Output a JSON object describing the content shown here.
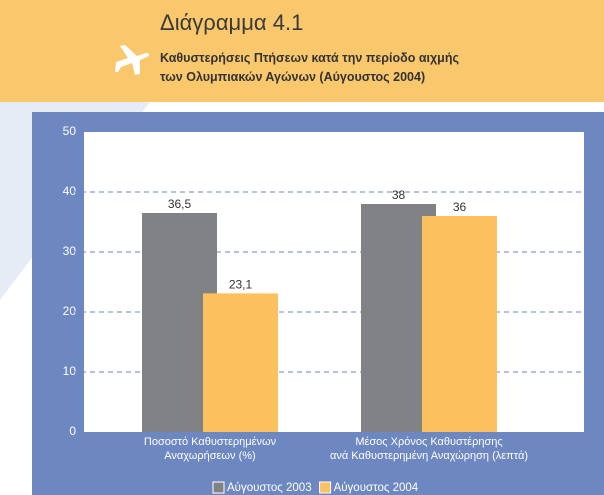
{
  "chart_data": {
    "type": "bar",
    "title": "Διάγραμμα 4.1",
    "subtitle": "Καθυστερήσεις Πτήσεων κατά την περίοδο αιχμής\nτων Ολυμπιακών Αγώνων (Αύγουστος 2004)",
    "categories": [
      "Ποσοστό Καθυστερημένων\nΑναχωρήσεων (%)",
      "Μέσος Χρόνος Καθυστέρησης\nανά Καθυστερημένη Αναχώρηση (λεπτά)"
    ],
    "series": [
      {
        "name": "Αύγουστος 2003",
        "color": "#808285",
        "values": [
          36.5,
          38
        ],
        "value_labels": [
          "36,5",
          "38"
        ]
      },
      {
        "name": "Αύγουστος 2004",
        "color": "#fbc15e",
        "values": [
          23.1,
          36
        ],
        "value_labels": [
          "23,1",
          "36"
        ]
      }
    ],
    "ylim": [
      0,
      50
    ],
    "yticks": [
      0,
      10,
      20,
      30,
      40,
      50
    ],
    "grid": true,
    "legend": "bottom"
  }
}
